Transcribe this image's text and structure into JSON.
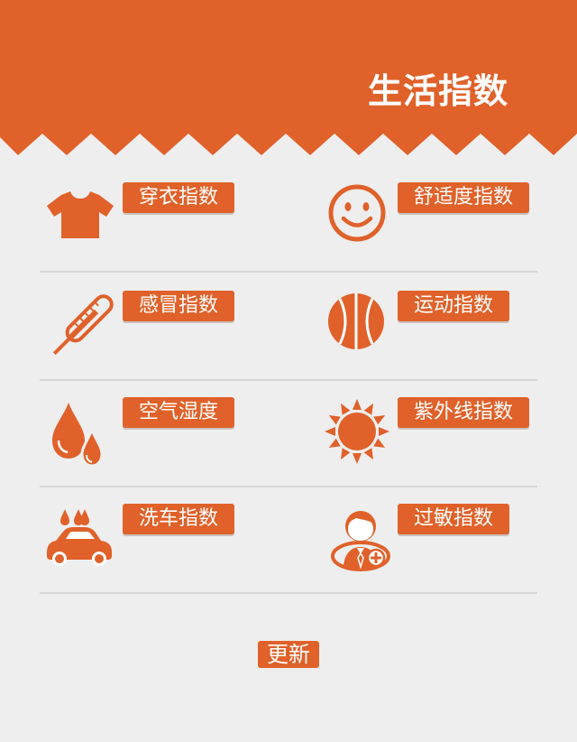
{
  "header": {
    "title": "生活指数"
  },
  "indices": [
    {
      "label": "穿衣指数",
      "icon": "tshirt-icon"
    },
    {
      "label": "舒适度指数",
      "icon": "smiley-icon"
    },
    {
      "label": "感冒指数",
      "icon": "thermometer-icon"
    },
    {
      "label": "运动指数",
      "icon": "basketball-icon"
    },
    {
      "label": "空气湿度",
      "icon": "water-drops-icon"
    },
    {
      "label": "紫外线指数",
      "icon": "sun-icon"
    },
    {
      "label": "洗车指数",
      "icon": "car-wash-icon"
    },
    {
      "label": "过敏指数",
      "icon": "allergy-person-icon"
    }
  ],
  "footer": {
    "update_label": "更新"
  },
  "colors": {
    "accent": "#e0612a",
    "background": "#eeeeee",
    "divider": "#d6d6d6"
  }
}
